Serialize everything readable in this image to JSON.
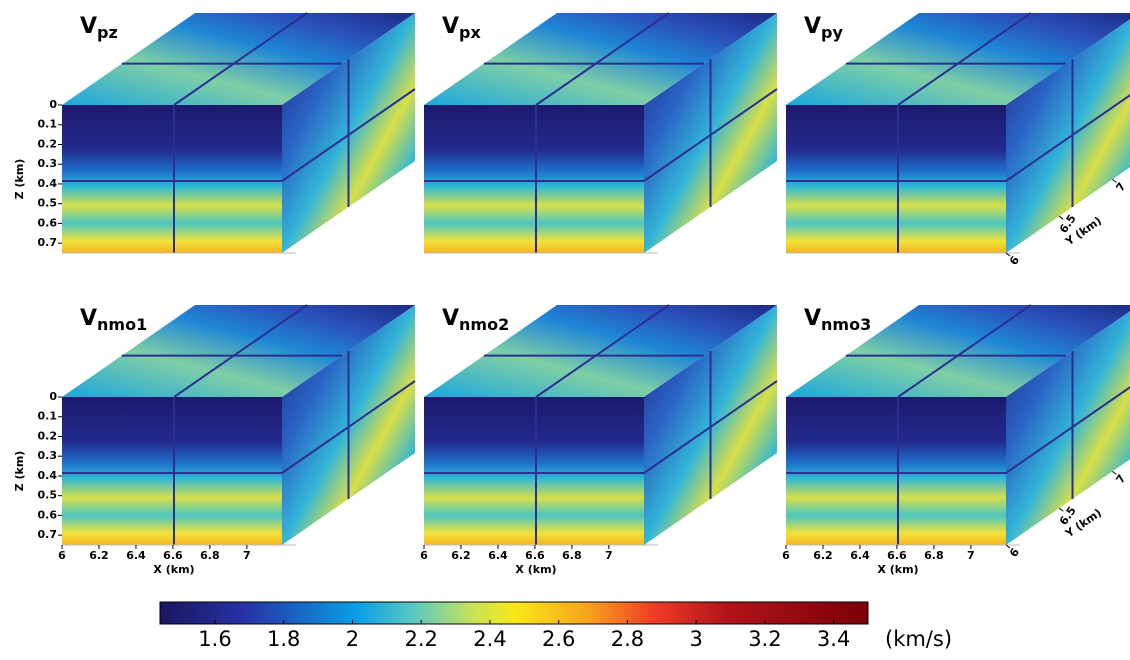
{
  "chart_data": {
    "type": "volume",
    "panels": [
      {
        "symbol": "V",
        "subscript": "pz"
      },
      {
        "symbol": "V",
        "subscript": "px"
      },
      {
        "symbol": "V",
        "subscript": "py"
      },
      {
        "symbol": "V",
        "subscript": "nmo1"
      },
      {
        "symbol": "V",
        "subscript": "nmo2"
      },
      {
        "symbol": "V",
        "subscript": "nmo3"
      }
    ],
    "zlabel": "Z (km)",
    "zlim": [
      0,
      0.75
    ],
    "zticks": [
      0,
      0.1,
      0.2,
      0.3,
      0.4,
      0.5,
      0.6,
      0.7
    ],
    "xlabel": "X (km)",
    "xlim": [
      6,
      7.19
    ],
    "xticks": [
      6,
      6.2,
      6.4,
      6.6,
      6.8,
      7
    ],
    "ylabel": "Y (km)",
    "ylim": [
      6,
      7.25
    ],
    "yticks": [
      6,
      6.5,
      7
    ],
    "colorbar": {
      "label": "(km/s)",
      "clim": [
        1.44,
        3.5
      ],
      "ticks": [
        1.6,
        1.8,
        2,
        2.2,
        2.4,
        2.6,
        2.8,
        3,
        3.2,
        3.4
      ]
    }
  }
}
